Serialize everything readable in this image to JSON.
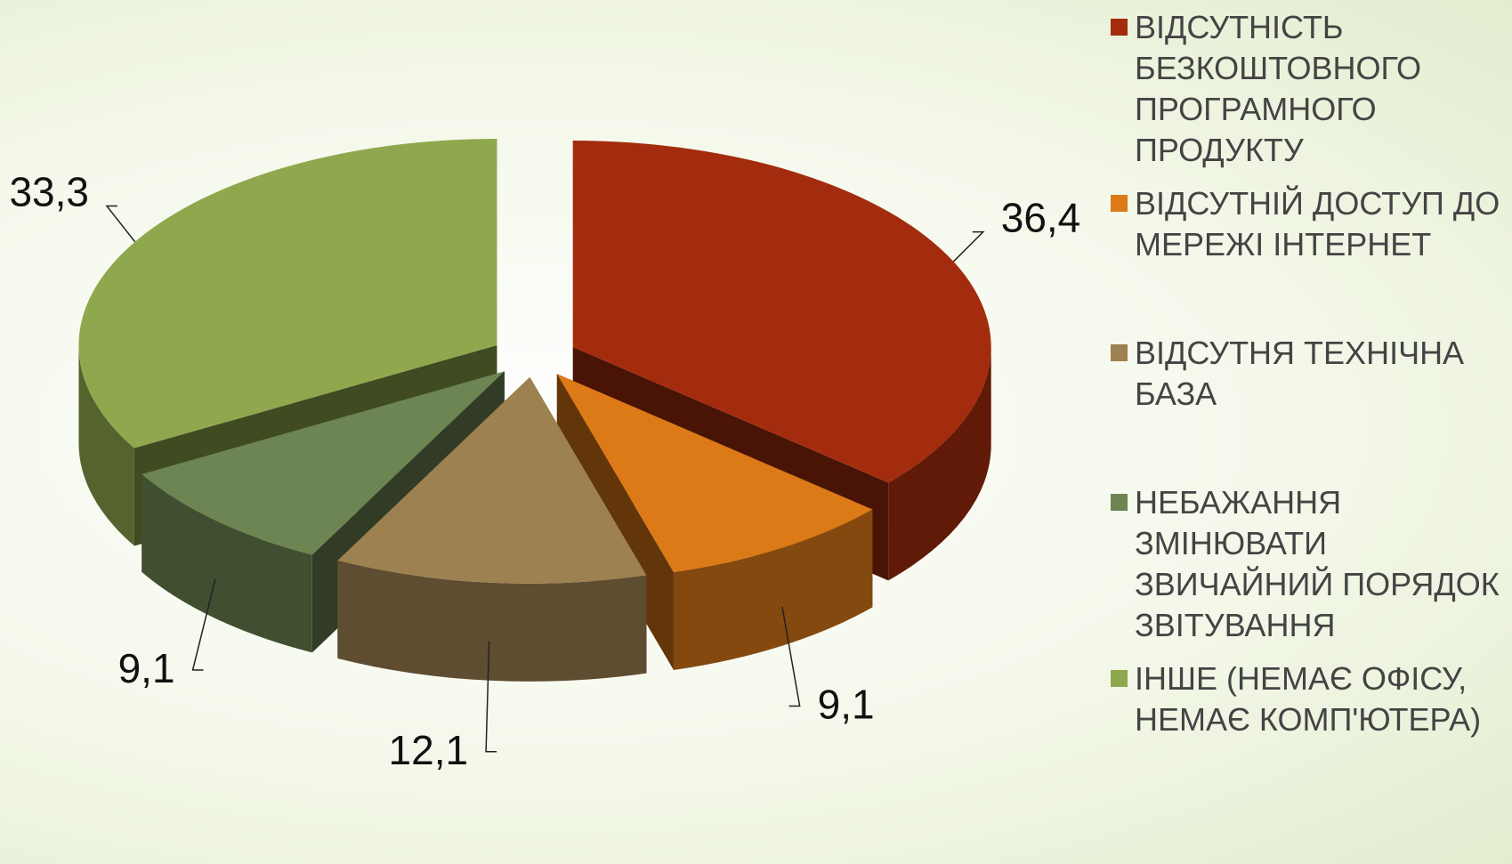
{
  "chart_data": {
    "type": "pie3d",
    "categories": [
      "ВІДСУТНІСТЬ БЕЗКОШТОВНОГО ПРОГРАМНОГО ПРОДУКТУ",
      "ВІДСУТНІЙ ДОСТУП ДО МЕРЕЖІ ІНТЕРНЕТ",
      "ВІДСУТНЯ ТЕХНІЧНА БАЗА",
      "НЕБАЖАННЯ ЗМІНЮВАТИ ЗВИЧАЙНИЙ ПОРЯДОК ЗВІТУВАННЯ",
      "ІНШЕ (НЕМАЄ ОФІСУ, НЕМАЄ КОМП'ЮТЕРА)"
    ],
    "values": [
      36.4,
      9.1,
      12.1,
      9.1,
      33.3
    ],
    "value_labels": [
      "36,4",
      "9,1",
      "12,1",
      "9,1",
      "33,3"
    ],
    "colors": [
      "#a32c0e",
      "#dc7a18",
      "#9e8150",
      "#6d8553",
      "#8fa84d"
    ],
    "legend": "right"
  }
}
